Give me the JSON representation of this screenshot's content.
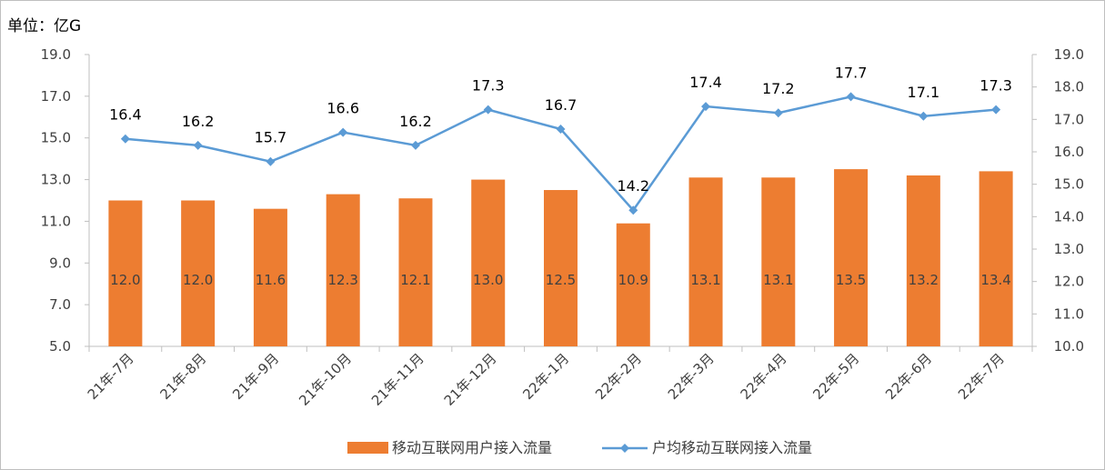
{
  "unit_label": "单位：亿G",
  "chart_data": {
    "type": "bar+line",
    "categories": [
      "21年-7月",
      "21年-8月",
      "21年-9月",
      "21年-10月",
      "21年-11月",
      "21年-12月",
      "22年-1月",
      "22年-2月",
      "22年-3月",
      "22年-4月",
      "22年-5月",
      "22年-6月",
      "22年-7月"
    ],
    "series": [
      {
        "name": "移动互联网用户接入流量",
        "type": "bar",
        "axis": "left",
        "color": "#ED7D31",
        "values": [
          12.0,
          12.0,
          11.6,
          12.3,
          12.1,
          13.0,
          12.5,
          10.9,
          13.1,
          13.1,
          13.5,
          13.2,
          13.4
        ],
        "labels": [
          "12.0",
          "12.0",
          "11.6",
          "12.3",
          "12.1",
          "13.0",
          "12.5",
          "10.9",
          "13.1",
          "13.1",
          "13.5",
          "13.2",
          "13.4"
        ]
      },
      {
        "name": "户均移动互联网接入流量",
        "type": "line",
        "axis": "right",
        "color": "#5B9BD5",
        "marker": "diamond",
        "values": [
          16.4,
          16.2,
          15.7,
          16.6,
          16.2,
          17.3,
          16.7,
          14.2,
          17.4,
          17.2,
          17.7,
          17.1,
          17.3
        ],
        "labels": [
          "16.4",
          "16.2",
          "15.7",
          "16.6",
          "16.2",
          "17.3",
          "16.7",
          "14.2",
          "17.4",
          "17.2",
          "17.7",
          "17.1",
          "17.3"
        ]
      }
    ],
    "y_left": {
      "min": 5.0,
      "max": 19.0,
      "ticks": [
        "5.0",
        "7.0",
        "9.0",
        "11.0",
        "13.0",
        "15.0",
        "17.0",
        "19.0"
      ]
    },
    "y_right": {
      "min": 10.0,
      "max": 19.0,
      "ticks": [
        "10.0",
        "11.0",
        "12.0",
        "13.0",
        "14.0",
        "15.0",
        "16.0",
        "17.0",
        "18.0",
        "19.0"
      ]
    },
    "grid": false,
    "legend_position": "bottom"
  }
}
